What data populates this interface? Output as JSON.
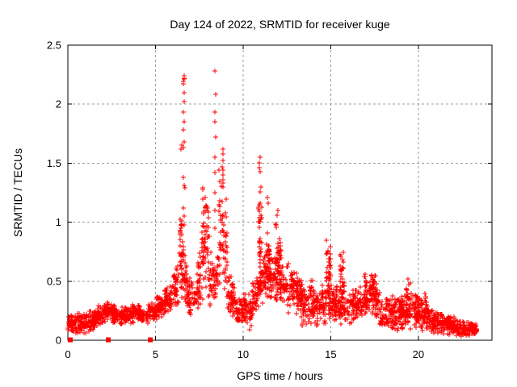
{
  "colors": {
    "marker": "#ff0000",
    "axis": "#000000",
    "grid": "#9c9c9c",
    "text": "#000000",
    "background": "#ffffff"
  },
  "chart_data": {
    "type": "scatter",
    "title": "Day 124 of 2022, SRMTID for receiver kuge",
    "xlabel": "GPS time / hours",
    "ylabel": "SRMTID / TECUs",
    "xlim": [
      0,
      24.2
    ],
    "ylim": [
      0,
      2.5
    ],
    "xticks": [
      0,
      5,
      10,
      15,
      20
    ],
    "yticks": [
      0,
      0.5,
      1,
      1.5,
      2,
      2.5
    ],
    "grid": true,
    "legend_position": "none",
    "marker": {
      "shape": "plus",
      "color": "#ff0000",
      "size": 7
    },
    "series_name": "SRMTID",
    "point_bands": [
      [
        0.0,
        0.5,
        60,
        0.05,
        0.24,
        0.05,
        0.24
      ],
      [
        0.5,
        1.0,
        60,
        0.05,
        0.26,
        0.04,
        0.25
      ],
      [
        1.0,
        1.5,
        58,
        0.03,
        0.25,
        0.06,
        0.28
      ],
      [
        1.5,
        2.0,
        58,
        0.08,
        0.3,
        0.13,
        0.3
      ],
      [
        2.0,
        2.5,
        58,
        0.15,
        0.35,
        0.15,
        0.32
      ],
      [
        2.5,
        3.0,
        56,
        0.14,
        0.31,
        0.13,
        0.28
      ],
      [
        3.0,
        3.5,
        55,
        0.12,
        0.28,
        0.14,
        0.3
      ],
      [
        3.5,
        4.0,
        55,
        0.14,
        0.3,
        0.15,
        0.31
      ],
      [
        4.0,
        4.5,
        55,
        0.15,
        0.32,
        0.14,
        0.3
      ],
      [
        4.5,
        5.0,
        55,
        0.12,
        0.31,
        0.16,
        0.34
      ],
      [
        5.0,
        5.5,
        55,
        0.16,
        0.38,
        0.18,
        0.43
      ],
      [
        5.5,
        6.0,
        55,
        0.18,
        0.46,
        0.22,
        0.52
      ],
      [
        6.0,
        6.35,
        38,
        0.22,
        0.6,
        0.26,
        0.72
      ],
      [
        6.35,
        6.6,
        32,
        0.3,
        1.05,
        0.3,
        0.95
      ],
      [
        6.38,
        6.52,
        10,
        0.88,
        1.08,
        0.88,
        1.05
      ],
      [
        6.6,
        6.8,
        24,
        0.25,
        0.85,
        0.25,
        0.7
      ],
      [
        6.8,
        7.35,
        55,
        0.18,
        0.6,
        0.2,
        0.55
      ],
      [
        7.35,
        7.65,
        32,
        0.22,
        0.7,
        0.28,
        0.85
      ],
      [
        7.65,
        8.05,
        65,
        0.3,
        1.42,
        0.3,
        1.3
      ],
      [
        8.05,
        8.35,
        30,
        0.25,
        0.8,
        0.28,
        0.7
      ],
      [
        8.35,
        8.6,
        26,
        0.28,
        0.75,
        0.35,
        0.85
      ],
      [
        8.6,
        9.1,
        62,
        0.35,
        1.55,
        0.3,
        1.25
      ],
      [
        9.1,
        9.6,
        55,
        0.2,
        0.62,
        0.18,
        0.5
      ],
      [
        9.6,
        10.5,
        95,
        0.1,
        0.42,
        0.08,
        0.4
      ],
      [
        10.5,
        10.9,
        45,
        0.15,
        0.52,
        0.25,
        0.6
      ],
      [
        10.9,
        11.35,
        55,
        0.3,
        0.8,
        0.32,
        0.75
      ],
      [
        10.88,
        11.08,
        30,
        0.5,
        1.4,
        0.5,
        1.3
      ],
      [
        11.33,
        11.52,
        22,
        0.5,
        1.1,
        0.5,
        1.05
      ],
      [
        11.35,
        12.3,
        105,
        0.3,
        0.8,
        0.3,
        0.7
      ],
      [
        11.85,
        12.2,
        45,
        0.35,
        1.08,
        0.35,
        1.0
      ],
      [
        12.3,
        13.3,
        105,
        0.22,
        0.72,
        0.2,
        0.58
      ],
      [
        13.25,
        13.4,
        14,
        0.28,
        0.56,
        0.28,
        0.52
      ],
      [
        13.3,
        14.3,
        100,
        0.1,
        0.52,
        0.12,
        0.42
      ],
      [
        13.82,
        14.0,
        15,
        0.18,
        0.58,
        0.18,
        0.52
      ],
      [
        14.3,
        15.2,
        90,
        0.12,
        0.52,
        0.15,
        0.5
      ],
      [
        14.72,
        15.02,
        36,
        0.28,
        0.88,
        0.3,
        0.85
      ],
      [
        15.2,
        16.2,
        100,
        0.12,
        0.5,
        0.1,
        0.42
      ],
      [
        15.5,
        15.78,
        32,
        0.28,
        0.82,
        0.28,
        0.75
      ],
      [
        16.2,
        17.2,
        95,
        0.14,
        0.48,
        0.18,
        0.5
      ],
      [
        16.9,
        17.1,
        14,
        0.25,
        0.73,
        0.25,
        0.65
      ],
      [
        17.2,
        17.8,
        62,
        0.2,
        0.58,
        0.15,
        0.48
      ],
      [
        17.35,
        17.62,
        26,
        0.28,
        0.62,
        0.28,
        0.58
      ],
      [
        17.8,
        18.6,
        82,
        0.08,
        0.4,
        0.06,
        0.38
      ],
      [
        18.6,
        19.2,
        62,
        0.06,
        0.42,
        0.08,
        0.4
      ],
      [
        18.9,
        19.05,
        12,
        0.15,
        0.45,
        0.15,
        0.42
      ],
      [
        19.2,
        20.2,
        100,
        0.08,
        0.45,
        0.08,
        0.4
      ],
      [
        19.3,
        19.55,
        18,
        0.18,
        0.55,
        0.18,
        0.5
      ],
      [
        19.95,
        20.08,
        12,
        0.12,
        0.42,
        0.12,
        0.4
      ],
      [
        20.2,
        21.2,
        108,
        0.06,
        0.32,
        0.05,
        0.26
      ],
      [
        20.3,
        20.55,
        16,
        0.12,
        0.48,
        0.12,
        0.4
      ],
      [
        21.2,
        22.2,
        108,
        0.04,
        0.26,
        0.04,
        0.2
      ],
      [
        21.6,
        21.85,
        14,
        0.08,
        0.27,
        0.08,
        0.24
      ],
      [
        22.2,
        23.35,
        118,
        0.03,
        0.18,
        0.03,
        0.15
      ]
    ],
    "spike_points": [
      {
        "t": 6.63,
        "values": [
          2.24,
          2.22,
          2.21,
          2.19,
          2.17,
          2.1,
          2.02,
          1.93,
          1.85,
          1.78,
          1.68,
          1.63,
          1.38,
          1.31,
          1.29,
          1.12,
          1.05,
          0.98
        ]
      },
      {
        "t": 6.47,
        "values": [
          1.65,
          1.62
        ]
      },
      {
        "t": 8.4,
        "values": [
          2.28,
          2.08,
          1.93,
          1.85,
          1.72,
          1.55,
          1.42,
          1.25,
          1.1,
          0.95
        ]
      },
      {
        "t": 8.82,
        "values": [
          1.62,
          1.58,
          1.52,
          1.47,
          1.44,
          1.4,
          1.36,
          1.33,
          1.3
        ]
      },
      {
        "t": 10.97,
        "values": [
          1.55,
          1.5,
          1.46,
          1.43
        ]
      },
      {
        "t": 11.42,
        "values": [
          1.21,
          1.16
        ]
      },
      {
        "t": 12.0,
        "values": [
          1.1,
          1.06
        ]
      }
    ],
    "zero_square_markers_t": [
      0.14,
      2.3,
      4.72
    ]
  }
}
